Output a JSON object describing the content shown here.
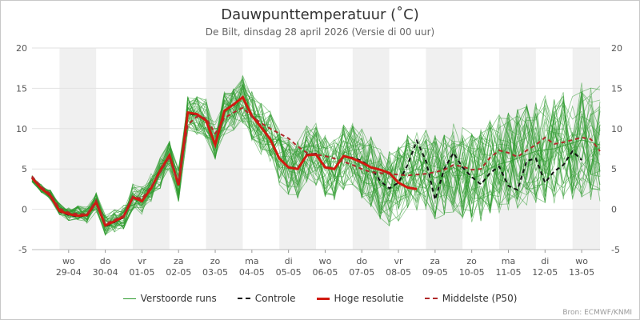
{
  "chart_data": {
    "type": "line",
    "title": "Dauwpunttemperatuur (˚C)",
    "subtitle": "De Bilt, dinsdag 28 april 2026 (Versie di 00 uur)",
    "credits": "Bron: ECMWF/KNMI",
    "ylim": [
      -5,
      20
    ],
    "y_ticks": [
      -5,
      0,
      5,
      10,
      15,
      20
    ],
    "xlim": [
      0,
      15.5
    ],
    "x_ticks": [
      {
        "pos": 1,
        "day": "wo",
        "date": "29-04"
      },
      {
        "pos": 2,
        "day": "do",
        "date": "30-04"
      },
      {
        "pos": 3,
        "day": "vr",
        "date": "01-05"
      },
      {
        "pos": 4,
        "day": "za",
        "date": "02-05"
      },
      {
        "pos": 5,
        "day": "zo",
        "date": "03-05"
      },
      {
        "pos": 6,
        "day": "ma",
        "date": "04-05"
      },
      {
        "pos": 7,
        "day": "di",
        "date": "05-05"
      },
      {
        "pos": 8,
        "day": "wo",
        "date": "06-05"
      },
      {
        "pos": 9,
        "day": "do",
        "date": "07-05"
      },
      {
        "pos": 10,
        "day": "vr",
        "date": "08-05"
      },
      {
        "pos": 11,
        "day": "za",
        "date": "09-05"
      },
      {
        "pos": 12,
        "day": "zo",
        "date": "10-05"
      },
      {
        "pos": 13,
        "day": "ma",
        "date": "11-05"
      },
      {
        "pos": 14,
        "day": "di",
        "date": "12-05"
      },
      {
        "pos": 15,
        "day": "wo",
        "date": "13-05"
      }
    ],
    "night_bands": [
      [
        0.75,
        1.75
      ],
      [
        2.75,
        3.75
      ],
      [
        4.75,
        5.75
      ],
      [
        6.75,
        7.75
      ],
      [
        8.75,
        9.75
      ],
      [
        10.75,
        11.75
      ],
      [
        12.75,
        13.75
      ],
      [
        14.75,
        15.75
      ]
    ],
    "grid": true,
    "legend_position": "bottom",
    "series": [
      {
        "name": "Verstoorde runs",
        "color": "#2e9a2e",
        "style": "thin",
        "x_step": 0.25,
        "x_start": 0,
        "values": [
          3.8,
          2.6,
          1.8,
          0.0,
          -0.6,
          -0.5,
          -0.7,
          0.9,
          -2.0,
          -1.4,
          -0.9,
          1.6,
          1.1,
          2.6,
          4.5,
          6.8,
          2.9,
          11.8,
          11.6,
          11.2,
          8.3,
          12.0,
          12.6,
          13.6,
          11.5,
          10.0,
          8.9,
          6.5,
          5.3,
          5.0,
          6.7,
          6.8,
          5.3,
          5.1,
          6.4,
          6.3,
          5.6,
          4.8,
          3.1,
          2.4,
          3.3,
          4.4,
          5.0,
          4.7,
          3.9,
          4.4,
          5.2,
          4.5,
          3.9,
          4.2,
          5.1,
          5.6,
          5.9,
          6.3,
          6.8,
          7.2,
          7.4,
          7.5,
          7.9,
          8.2,
          8.6,
          8.3,
          8.0
        ]
      },
      {
        "name": "Controle",
        "color": "#111111",
        "style": "dash",
        "x_step": 0.25,
        "x_start": 0,
        "values": [
          4.0,
          2.7,
          1.6,
          -0.3,
          -0.7,
          -0.9,
          -0.8,
          0.8,
          -2.1,
          -1.6,
          -1.0,
          1.4,
          1.0,
          2.7,
          4.9,
          6.6,
          3.0,
          11.9,
          11.7,
          11.0,
          8.1,
          12.2,
          12.9,
          13.9,
          11.7,
          10.3,
          8.8,
          6.3,
          5.2,
          5.1,
          6.8,
          6.9,
          5.3,
          5.0,
          6.6,
          6.4,
          6.0,
          5.2,
          3.5,
          2.6,
          3.3,
          5.5,
          8.5,
          6.0,
          1.2,
          5.0,
          7.0,
          5.2,
          4.0,
          3.1,
          4.5,
          5.3,
          2.9,
          2.4,
          6.0,
          6.3,
          3.3,
          4.7,
          5.5,
          7.2,
          6.1
        ]
      },
      {
        "name": "Hoge resolutie",
        "color": "#d11a10",
        "style": "thick",
        "x_step": 0.25,
        "x_start": 0,
        "values": [
          3.9,
          2.6,
          1.7,
          -0.2,
          -0.6,
          -0.8,
          -0.7,
          0.9,
          -2.0,
          -1.5,
          -0.9,
          1.5,
          1.0,
          2.6,
          4.8,
          6.7,
          3.0,
          12.0,
          11.8,
          11.0,
          8.0,
          12.2,
          13.0,
          13.9,
          11.6,
          10.2,
          8.7,
          6.3,
          5.2,
          5.0,
          6.7,
          6.8,
          5.2,
          5.0,
          6.6,
          6.3,
          5.8,
          5.2,
          4.9,
          4.5,
          3.3,
          2.7,
          2.5
        ]
      },
      {
        "name": "Middelste (P50)",
        "color": "#b0282a",
        "style": "dash",
        "x_step": 0.25,
        "x_start": 0,
        "values": [
          4.1,
          2.8,
          1.9,
          0.1,
          -0.4,
          -0.6,
          -0.6,
          1.1,
          -1.8,
          -1.3,
          -0.8,
          1.6,
          1.3,
          2.8,
          4.6,
          6.5,
          3.3,
          10.5,
          11.5,
          11.3,
          9.4,
          11.3,
          12.0,
          12.6,
          11.5,
          10.7,
          10.0,
          9.4,
          8.8,
          7.8,
          7.0,
          6.8,
          6.6,
          6.3,
          5.9,
          5.5,
          5.0,
          4.6,
          4.5,
          4.4,
          4.3,
          4.2,
          4.3,
          4.4,
          4.6,
          4.9,
          5.5,
          5.3,
          4.9,
          5.0,
          6.4,
          7.3,
          7.0,
          6.5,
          7.3,
          8.0,
          8.9,
          8.1,
          8.3,
          8.6,
          8.9,
          8.7,
          7.2
        ]
      }
    ]
  },
  "legend": [
    {
      "label": "Verstoorde runs",
      "color": "#2e9a2e",
      "style": "thin"
    },
    {
      "label": "Controle",
      "color": "#111111",
      "style": "dash"
    },
    {
      "label": "Hoge resolutie",
      "color": "#d11a10",
      "style": "thick"
    },
    {
      "label": "Middelste (P50)",
      "color": "#b0282a",
      "style": "dash"
    }
  ]
}
